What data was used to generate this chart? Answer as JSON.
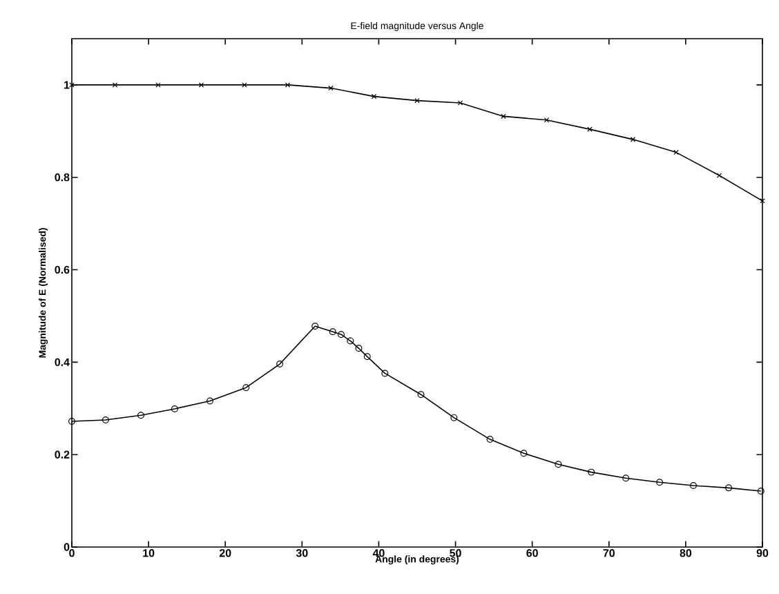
{
  "chart_data": {
    "type": "line",
    "title": "E-field magnitude versus Angle",
    "xlabel": "Angle (in degrees)",
    "ylabel": "Magnitude of E (Normalised)",
    "xlim": [
      0,
      90
    ],
    "ylim": [
      0,
      1.1
    ],
    "xticks": [
      0,
      10,
      20,
      30,
      40,
      50,
      60,
      70,
      80,
      90
    ],
    "yticks": [
      0,
      0.2,
      0.4,
      0.6,
      0.8,
      1
    ],
    "grid": false,
    "legend": false,
    "line_style": "solid",
    "series": [
      {
        "color": "#000000",
        "marker": "cross",
        "x": [
          0,
          5.625,
          11.25,
          16.875,
          22.5,
          28.125,
          33.75,
          39.375,
          45,
          50.625,
          56.25,
          61.875,
          67.5,
          73.125,
          78.75,
          84.375,
          90
        ],
        "values": [
          1.0,
          1.0,
          1.0,
          1.0,
          1.0,
          1.0,
          0.993,
          0.975,
          0.966,
          0.961,
          0.932,
          0.924,
          0.904,
          0.882,
          0.854,
          0.804,
          0.749
        ]
      },
      {
        "color": "#000000",
        "marker": "circle",
        "x": [
          0,
          4.4,
          9.0,
          13.4,
          18.0,
          22.7,
          27.1,
          31.7,
          34.0,
          35.1,
          36.3,
          37.4,
          38.5,
          40.8,
          45.5,
          49.8,
          54.5,
          58.9,
          63.4,
          67.7,
          72.2,
          76.6,
          81.0,
          85.6,
          89.8
        ],
        "values": [
          0.272,
          0.275,
          0.285,
          0.299,
          0.316,
          0.345,
          0.396,
          0.478,
          0.466,
          0.46,
          0.446,
          0.43,
          0.412,
          0.376,
          0.33,
          0.28,
          0.233,
          0.203,
          0.179,
          0.162,
          0.149,
          0.14,
          0.133,
          0.128,
          0.121
        ]
      }
    ]
  }
}
